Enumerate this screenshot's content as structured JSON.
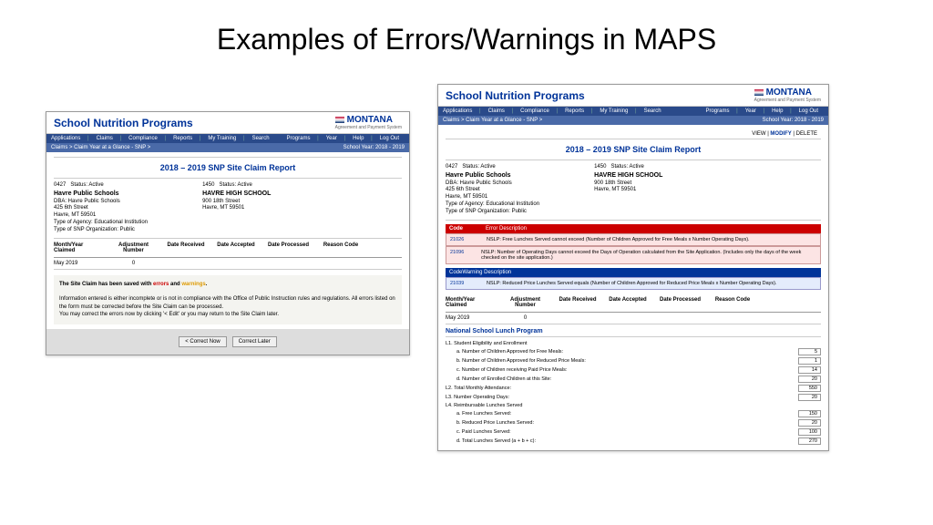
{
  "slide": {
    "title": "Examples of Errors/Warnings in MAPS"
  },
  "common": {
    "header_title": "School Nutrition Programs",
    "logo": "MONTANA",
    "logo_sub": "Agreement and Payment System",
    "nav_left": [
      "Applications",
      "Claims",
      "Compliance",
      "Reports",
      "My Training",
      "Search"
    ],
    "nav_right_left": [
      "Programs",
      "Year",
      "Help",
      "Log Out"
    ],
    "breadcrumb": "Claims > Claim Year at a Glance - SNP >",
    "school_year": "School Year: 2018 - 2019",
    "report_title": "2018 – 2019 SNP Site Claim Report",
    "left_info": {
      "id": "0427",
      "status": "Status: Active",
      "line1_b": "Havre Public Schools",
      "line2": "DBA: Havre Public Schools",
      "line3": "425 6th Street",
      "line4": "Havre, MT 59501",
      "line5": "Type of Agency: Educational Institution",
      "line6": "Type of SNP Organization: Public"
    },
    "right_info": {
      "id": "1450",
      "status": "Status: Active",
      "line1_b": "HAVRE HIGH SCHOOL",
      "line2": "900 18th Street",
      "line3": "Havre, MT 59501"
    },
    "cols": [
      "Month/Year Claimed",
      "Adjustment Number",
      "Date Received",
      "Date Accepted",
      "Date Processed",
      "Reason Code"
    ],
    "row": {
      "month": "May 2019",
      "adj": "0"
    }
  },
  "left": {
    "msg_head_pre": "The Site Claim has been saved with ",
    "msg_head_err": "errors",
    "msg_head_mid": " and ",
    "msg_head_warn": "warnings",
    "msg_head_post": ".",
    "msg_body": "Information entered is either incomplete or is not in compliance with the Office of Public Instruction rules and regulations. All errors listed on the form must be corrected before the Site Claim can be processed.\nYou may correct the errors now by clicking '< Edit' or you may return to the Site Claim later.",
    "btn1": "< Correct Now",
    "btn2": "Correct Later"
  },
  "right": {
    "modify_link": "VIEW | ",
    "modify": "MODIFY",
    "modify_after": " | DELETE",
    "err_header": [
      "Code",
      "Error Description"
    ],
    "errors": [
      {
        "code": "21026",
        "desc": "NSLP: Free Lunches Served cannot exceed (Number of Children Approved for Free Meals x Number Operating Days)."
      },
      {
        "code": "21096",
        "desc": "NSLP: Number of Operating Days cannot exceed the Days of Operation calculated from the Site Application. (Includes only the days of the week checked on the site application.)"
      }
    ],
    "warn_header": [
      "Code",
      "Warning Description"
    ],
    "warnings": [
      {
        "code": "21039",
        "desc": "NSLP: Reduced Price Lunches Served equals (Number of Children Approved for Reduced Price Meals x Number Operating Days)."
      }
    ],
    "nslp_title": "National School Lunch Program",
    "items": [
      {
        "label": "L1.  Student Eligibility and Enrollment",
        "val": ""
      },
      {
        "label": "a. Number of Children Approved for Free Meals:",
        "val": "5",
        "indent": true
      },
      {
        "label": "b. Number of Children Approved for Reduced Price Meals:",
        "val": "1",
        "indent": true
      },
      {
        "label": "c. Number of Children receiving Paid Price Meals:",
        "val": "14",
        "indent": true
      },
      {
        "label": "d. Number of Enrolled Children at this Site:",
        "val": "20",
        "indent": true
      },
      {
        "label": "L2.  Total Monthly Attendance:",
        "val": "550"
      },
      {
        "label": "L3.  Number Operating Days:",
        "val": "20"
      },
      {
        "label": "L4.  Reimbursable Lunches Served",
        "val": ""
      },
      {
        "label": "a. Free Lunches Served:",
        "val": "150",
        "indent": true
      },
      {
        "label": "b. Reduced Price Lunches Served:",
        "val": "20",
        "indent": true
      },
      {
        "label": "c. Paid Lunches Served:",
        "val": "100",
        "indent": true
      },
      {
        "label": "d. Total Lunches Served (a + b + c):",
        "val": "270",
        "indent": true
      }
    ]
  }
}
